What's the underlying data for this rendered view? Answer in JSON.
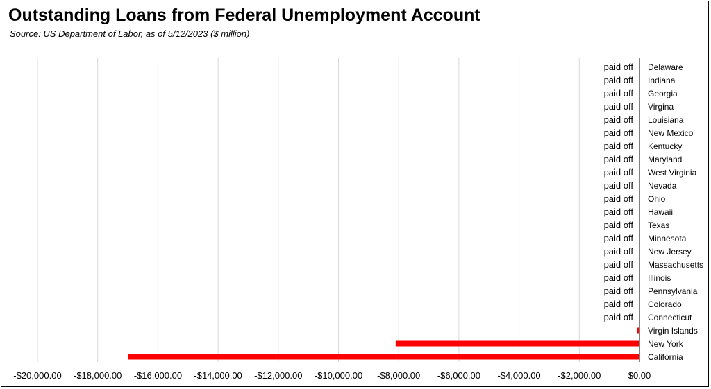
{
  "chart_data": {
    "type": "bar",
    "orientation": "horizontal",
    "title": "Outstanding Loans from Federal Unemployment Account",
    "subtitle": "Source:  US Department of Labor, as of 5/12/2023  ($ million)",
    "xlim": [
      -20000,
      0
    ],
    "x_ticks": [
      -20000,
      -18000,
      -16000,
      -14000,
      -12000,
      -10000,
      -8000,
      -6000,
      -4000,
      -2000,
      0
    ],
    "x_tick_labels": [
      "-$20,000.00",
      "-$18,000.00",
      "-$16,000.00",
      "-$14,000.00",
      "-$12,000.00",
      "-$10,000.00",
      "-$8,000.00",
      "-$6,000.00",
      "-$4,000.00",
      "-$2,000.00",
      "$0.00"
    ],
    "grid": true,
    "bar_color": "#ff0000",
    "categories": [
      "Delaware",
      "Indiana",
      "Georgia",
      "Virgina",
      "Louisiana",
      "New Mexico",
      "Kentucky",
      "Maryland",
      "West Virginia",
      "Nevada",
      "Ohio",
      "Hawaii",
      "Texas",
      "Minnesota",
      "New Jersey",
      "Massachusetts",
      "Illinois",
      "Pennsylvania",
      "Colorado",
      "Connecticut",
      "Virgin Islands",
      "New York",
      "California"
    ],
    "values": [
      0,
      0,
      0,
      0,
      0,
      0,
      0,
      0,
      0,
      0,
      0,
      0,
      0,
      0,
      0,
      0,
      0,
      0,
      0,
      0,
      -90,
      -8100,
      -17000
    ],
    "data_labels": [
      "paid off",
      "paid off",
      "paid off",
      "paid off",
      "paid off",
      "paid off",
      "paid off",
      "paid off",
      "paid off",
      "paid off",
      "paid off",
      "paid off",
      "paid off",
      "paid off",
      "paid off",
      "paid off",
      "paid off",
      "paid off",
      "paid off",
      "paid off",
      "",
      "",
      ""
    ]
  }
}
